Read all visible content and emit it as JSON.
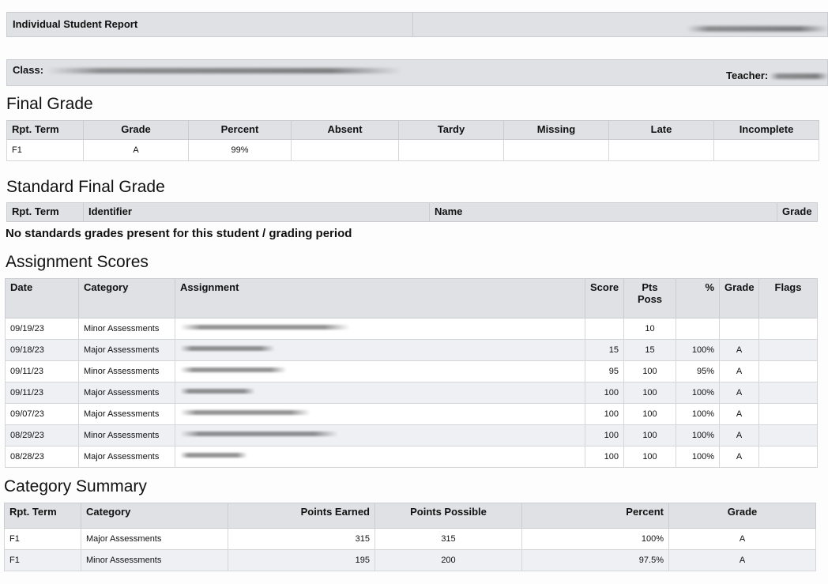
{
  "header": {
    "title": "Individual Student Report",
    "class_label": "Class:",
    "teacher_label": "Teacher:"
  },
  "final_grade": {
    "heading": "Final Grade",
    "columns": [
      "Rpt. Term",
      "Grade",
      "Percent",
      "Absent",
      "Tardy",
      "Missing",
      "Late",
      "Incomplete"
    ],
    "row": {
      "term": "F1",
      "grade": "A",
      "percent": "99%",
      "absent": "",
      "tardy": "",
      "missing": "",
      "late": "",
      "incomplete": ""
    }
  },
  "standard_final_grade": {
    "heading": "Standard Final Grade",
    "columns": [
      "Rpt. Term",
      "Identifier",
      "Name",
      "Grade"
    ],
    "empty_message": "No standards grades present for this student / grading period"
  },
  "assignment_scores": {
    "heading": "Assignment Scores",
    "columns": {
      "date": "Date",
      "category": "Category",
      "assignment": "Assignment",
      "score": "Score",
      "pts_poss": "Pts Poss",
      "pct": "%",
      "grade": "Grade",
      "flags": "Flags"
    },
    "rows": [
      {
        "date": "09/19/23",
        "category": "Minor Assessments",
        "score": "",
        "pts": "10",
        "pct": "",
        "grade": "",
        "flags": ""
      },
      {
        "date": "09/18/23",
        "category": "Major Assessments",
        "score": "15",
        "pts": "15",
        "pct": "100%",
        "grade": "A",
        "flags": ""
      },
      {
        "date": "09/11/23",
        "category": "Minor Assessments",
        "score": "95",
        "pts": "100",
        "pct": "95%",
        "grade": "A",
        "flags": ""
      },
      {
        "date": "09/11/23",
        "category": "Major Assessments",
        "score": "100",
        "pts": "100",
        "pct": "100%",
        "grade": "A",
        "flags": ""
      },
      {
        "date": "09/07/23",
        "category": "Major Assessments",
        "score": "100",
        "pts": "100",
        "pct": "100%",
        "grade": "A",
        "flags": ""
      },
      {
        "date": "08/29/23",
        "category": "Minor Assessments",
        "score": "100",
        "pts": "100",
        "pct": "100%",
        "grade": "A",
        "flags": ""
      },
      {
        "date": "08/28/23",
        "category": "Major Assessments",
        "score": "100",
        "pts": "100",
        "pct": "100%",
        "grade": "A",
        "flags": ""
      }
    ]
  },
  "category_summary": {
    "heading": "Category Summary",
    "columns": [
      "Rpt. Term",
      "Category",
      "Points Earned",
      "Points Possible",
      "Percent",
      "Grade"
    ],
    "rows": [
      {
        "term": "F1",
        "category": "Major Assessments",
        "earned": "315",
        "possible": "315",
        "percent": "100%",
        "grade": "A"
      },
      {
        "term": "F1",
        "category": "Minor Assessments",
        "earned": "195",
        "possible": "200",
        "percent": "97.5%",
        "grade": "A"
      }
    ]
  }
}
